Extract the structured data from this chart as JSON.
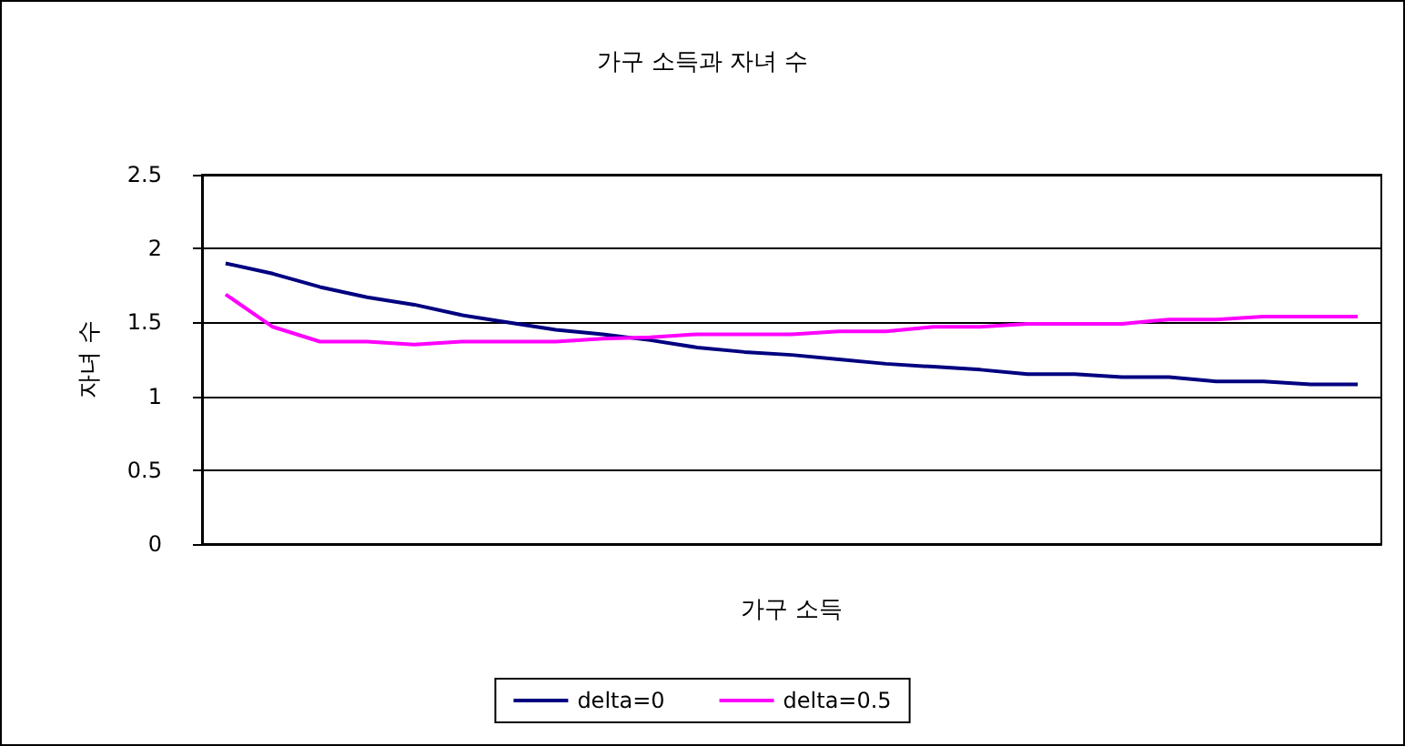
{
  "chart_data": {
    "type": "line",
    "title": "가구 소득과 자녀 수",
    "xlabel": "가구 소득",
    "ylabel": "자녀 수",
    "categories": [
      null,
      null,
      null,
      null,
      null,
      null,
      null,
      null,
      null,
      null,
      null,
      null,
      null,
      null,
      null,
      null,
      null,
      null,
      null,
      null,
      null,
      null,
      null,
      null,
      null
    ],
    "series": [
      {
        "name": "delta=0",
        "color": "#000080",
        "values": [
          1.9,
          1.83,
          1.74,
          1.67,
          1.62,
          1.55,
          1.5,
          1.45,
          1.42,
          1.38,
          1.33,
          1.3,
          1.28,
          1.25,
          1.22,
          1.2,
          1.18,
          1.15,
          1.15,
          1.13,
          1.13,
          1.1,
          1.1,
          1.08,
          1.08
        ]
      },
      {
        "name": "delta=0.5",
        "color": "#ff00ff",
        "values": [
          1.69,
          1.47,
          1.37,
          1.37,
          1.35,
          1.37,
          1.37,
          1.37,
          1.39,
          1.4,
          1.42,
          1.42,
          1.42,
          1.44,
          1.44,
          1.47,
          1.47,
          1.49,
          1.49,
          1.49,
          1.52,
          1.52,
          1.54,
          1.54,
          1.54
        ]
      }
    ],
    "ylim": [
      0,
      2.5
    ],
    "yticks": [
      0,
      0.5,
      1,
      1.5,
      2,
      2.5
    ],
    "grid": "y",
    "legend": "bottom",
    "marker": "none",
    "line_style": "solid"
  }
}
